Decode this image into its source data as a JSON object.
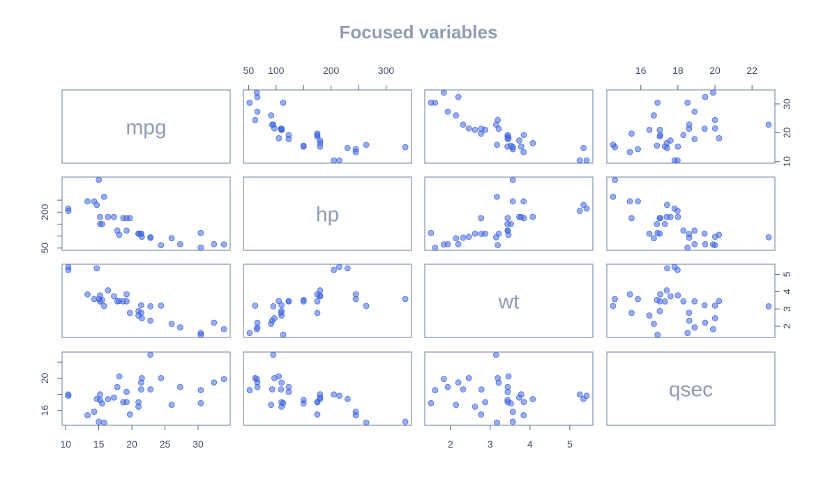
{
  "colors": {
    "point": "#4169e1",
    "frame": "#8a9ab3",
    "title": "#8f9db3",
    "axis": "#3d4a66"
  },
  "chart_data": {
    "type": "scatter",
    "title": "Focused variables",
    "variables": [
      "mpg",
      "hp",
      "wt",
      "qsec"
    ],
    "ranges": {
      "mpg": [
        10.4,
        33.9
      ],
      "hp": [
        52,
        335
      ],
      "wt": [
        1.513,
        5.424
      ],
      "qsec": [
        14.5,
        22.9
      ]
    },
    "ticks": {
      "mpg": [
        10,
        15,
        20,
        25,
        30
      ],
      "hp": [
        50,
        100,
        150,
        200,
        250,
        300
      ],
      "wt": [
        2,
        3,
        4,
        5
      ],
      "qsec": [
        16,
        18,
        20,
        22
      ]
    },
    "tick_labels": {
      "mpg": [
        "10",
        "15",
        "20",
        "25",
        "30"
      ],
      "hp": [
        "50",
        "100",
        "",
        "200",
        "",
        "300"
      ],
      "wt": [
        "2",
        "3",
        "4",
        "5"
      ],
      "qsec": [
        "16",
        "18",
        "20",
        "22"
      ]
    },
    "left_ticks": {
      "mpg": [
        10,
        20,
        30
      ],
      "hp": [
        50,
        100,
        150,
        200,
        250
      ],
      "wt": [
        2,
        3,
        4,
        5
      ],
      "qsec": [
        16,
        18,
        20,
        22
      ]
    },
    "left_tick_labels": {
      "mpg": [
        "10",
        "20",
        "30"
      ],
      "hp": [
        "50",
        "",
        "",
        "200",
        ""
      ],
      "wt": [
        "2",
        "3",
        "4",
        "5"
      ],
      "qsec": [
        "16",
        "",
        "20",
        ""
      ]
    },
    "data": {
      "mpg": [
        21,
        21,
        22.8,
        21.4,
        18.7,
        18.1,
        14.3,
        24.4,
        22.8,
        19.2,
        17.8,
        16.4,
        17.3,
        15.2,
        10.4,
        10.4,
        14.7,
        32.4,
        30.4,
        33.9,
        21.5,
        15.5,
        15.2,
        13.3,
        19.2,
        27.3,
        26,
        30.4,
        15.8,
        19.7,
        15,
        21.4
      ],
      "hp": [
        110,
        110,
        93,
        110,
        175,
        105,
        245,
        62,
        95,
        123,
        123,
        180,
        180,
        180,
        205,
        215,
        230,
        66,
        52,
        65,
        97,
        150,
        150,
        245,
        175,
        66,
        91,
        113,
        264,
        175,
        335,
        109
      ],
      "wt": [
        2.62,
        2.875,
        2.32,
        3.215,
        3.44,
        3.46,
        3.57,
        3.19,
        3.15,
        3.44,
        3.44,
        4.07,
        3.73,
        3.78,
        5.25,
        5.424,
        5.345,
        2.2,
        1.615,
        1.835,
        2.465,
        3.52,
        3.435,
        3.84,
        3.845,
        1.935,
        2.14,
        1.513,
        3.17,
        2.77,
        3.57,
        2.78
      ],
      "qsec": [
        16.46,
        17.02,
        18.61,
        19.44,
        17.02,
        20.22,
        15.84,
        20,
        22.9,
        18.3,
        18.9,
        17.4,
        17.6,
        18,
        17.98,
        17.82,
        17.42,
        19.47,
        18.52,
        19.9,
        20.01,
        16.87,
        17.3,
        15.41,
        17.05,
        18.9,
        16.7,
        16.9,
        14.5,
        15.5,
        14.6,
        18.6
      ]
    }
  }
}
